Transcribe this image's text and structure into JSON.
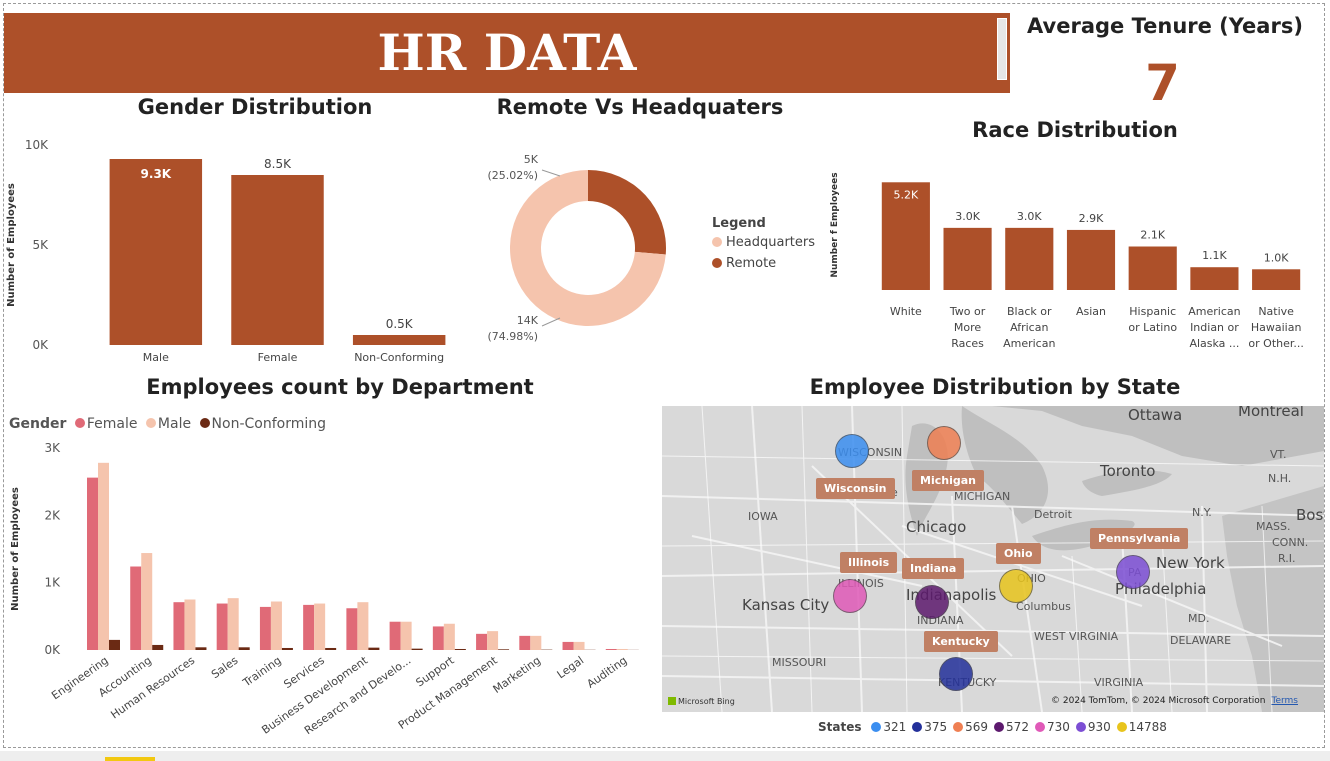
{
  "header": {
    "title": "HR DATA"
  },
  "kpi": {
    "title": "Average Tenure (Years)",
    "value": "7"
  },
  "colors": {
    "primary": "#ad5029",
    "light": "#f5c4ad",
    "female": "#e06a77",
    "dark": "#6b2a14"
  },
  "chart_data": [
    {
      "id": "gender",
      "type": "bar",
      "title": "Gender Distribution",
      "ylabel": "Number of Employees",
      "categories": [
        "Male",
        "Female",
        "Non-Conforming"
      ],
      "values": [
        9300,
        8500,
        500
      ],
      "value_labels": [
        "9.3K",
        "8.5K",
        "0.5K"
      ],
      "yticks": [
        "0K",
        "5K",
        "10K"
      ],
      "ylim": [
        0,
        10000
      ]
    },
    {
      "id": "remote",
      "type": "pie",
      "title": "Remote Vs Headquaters",
      "legend_title": "Legend",
      "slices": [
        {
          "name": "Remote",
          "value": 5000,
          "label": "5K",
          "pct": "(25.02%)"
        },
        {
          "name": "Headquarters",
          "value": 14000,
          "label": "14K",
          "pct": "(74.98%)"
        }
      ]
    },
    {
      "id": "race",
      "type": "bar",
      "title": "Race Distribution",
      "ylabel": "Number f Employees",
      "categories": [
        [
          "White"
        ],
        [
          "Two or",
          "More",
          "Races"
        ],
        [
          "Black or",
          "African",
          "American"
        ],
        [
          "Asian"
        ],
        [
          "Hispanic",
          "or Latino"
        ],
        [
          "American",
          "Indian or",
          "Alaska ..."
        ],
        [
          "Native",
          "Hawaiian",
          "or Other..."
        ]
      ],
      "values": [
        5200,
        3000,
        3000,
        2900,
        2100,
        1100,
        1000
      ],
      "value_labels": [
        "5.2K",
        "3.0K",
        "3.0K",
        "2.9K",
        "2.1K",
        "1.1K",
        "1.0K"
      ],
      "ylim": [
        0,
        5600
      ]
    },
    {
      "id": "department",
      "type": "bar",
      "title": "Employees count by Department",
      "ylabel": "Number of Employees",
      "legend_title": "Gender",
      "categories": [
        "Engineering",
        "Accounting",
        "Human Resources",
        "Sales",
        "Training",
        "Services",
        "Business Development",
        "Research and Develo...",
        "Support",
        "Product Management",
        "Marketing",
        "Legal",
        "Auditing"
      ],
      "series": [
        {
          "name": "Female",
          "values": [
            2560,
            1240,
            710,
            690,
            640,
            670,
            620,
            420,
            350,
            240,
            210,
            120,
            15
          ]
        },
        {
          "name": "Male",
          "values": [
            2780,
            1440,
            750,
            770,
            720,
            690,
            710,
            420,
            390,
            280,
            210,
            120,
            15
          ]
        },
        {
          "name": "Non-Conforming",
          "values": [
            150,
            75,
            40,
            40,
            30,
            30,
            35,
            20,
            15,
            10,
            5,
            3,
            2
          ]
        }
      ],
      "yticks": [
        "0K",
        "1K",
        "2K",
        "3K"
      ],
      "ylim": [
        0,
        3000
      ]
    }
  ],
  "map": {
    "title": "Employee Distribution by State",
    "legend_title": "States",
    "legend": [
      {
        "value": "321",
        "color": "#3b8ef0"
      },
      {
        "value": "375",
        "color": "#23309a"
      },
      {
        "value": "569",
        "color": "#ef7f52"
      },
      {
        "value": "572",
        "color": "#5d1a6e"
      },
      {
        "value": "730",
        "color": "#e05ab8"
      },
      {
        "value": "930",
        "color": "#7c4ed4"
      },
      {
        "value": "14788",
        "color": "#e8c41c"
      }
    ],
    "state_tags": [
      "Wisconsin",
      "Michigan",
      "Illinois",
      "Indiana",
      "Ohio",
      "Pennsylvania",
      "Kentucky"
    ],
    "place_labels": [
      "Ottawa",
      "Montreal",
      "Toronto",
      "Chicago",
      "Detroit",
      "New York",
      "Philadelphia",
      "Columbus",
      "Kansas City",
      "Indianapolis",
      "MICHIGAN",
      "IOWA",
      "MISSOURI",
      "INDIANA",
      "ILLINOIS",
      "OHIO",
      "KENTUCKY",
      "WEST VIRGINIA",
      "VIRGINIA",
      "DELAWARE",
      "MASS.",
      "Milwaukee",
      "WISCONSIN",
      "VT.",
      "N.H.",
      "N.Y.",
      "CONN.",
      "R.I.",
      "MD.",
      "PA",
      "Bosto"
    ],
    "copyright": "© 2024 TomTom, © 2024 Microsoft Corporation",
    "terms": "Terms",
    "bing": "Microsoft Bing"
  }
}
